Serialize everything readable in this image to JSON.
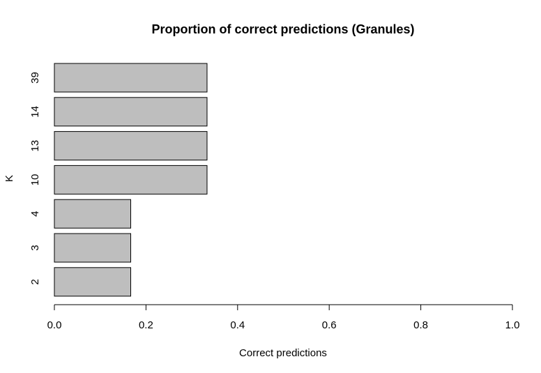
{
  "chart_data": {
    "type": "bar",
    "orientation": "horizontal",
    "title": "Proportion of correct predictions (Granules)",
    "xlabel": "Correct predictions",
    "ylabel": "K",
    "categories": [
      "2",
      "3",
      "4",
      "10",
      "13",
      "14",
      "39"
    ],
    "values": [
      0.1667,
      0.1667,
      0.1667,
      0.3333,
      0.3333,
      0.3333,
      0.3333
    ],
    "xlim": [
      0,
      1
    ],
    "xticks": [
      "0.0",
      "0.2",
      "0.4",
      "0.6",
      "0.8",
      "1.0"
    ],
    "grid": false,
    "bar_color": "#bebebe",
    "bar_border_color": "#000000"
  }
}
